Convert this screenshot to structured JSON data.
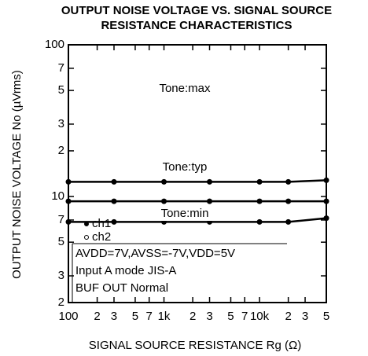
{
  "chart_data": {
    "type": "line",
    "title": "OUTPUT NOISE VOLTAGE VS. SIGNAL SOURCE",
    "subtitle": "RESISTANCE CHARACTERISTICS",
    "x_label": "SIGNAL SOURCE RESISTANCE Rg (Ω)",
    "y_label": "OUTPUT NOISE VOLTAGE No (µVrms)",
    "x": [
      100,
      300,
      1000,
      3000,
      10000,
      20000,
      50000
    ],
    "series": [
      {
        "name": "Tone:max",
        "color": "#000000",
        "values": [
          6.8,
          6.8,
          6.8,
          6.8,
          6.8,
          6.8,
          7.2
        ]
      },
      {
        "name": "Tone:typ",
        "color": "#000000",
        "values": [
          12.5,
          12.5,
          12.5,
          12.5,
          12.5,
          12.5,
          12.8
        ]
      },
      {
        "name": "Tone:min",
        "color": "#000000",
        "values": [
          9.3,
          9.3,
          9.3,
          9.3,
          9.3,
          9.3,
          9.3
        ]
      }
    ],
    "legend": [
      "ch1",
      "ch2"
    ],
    "notes": [
      "AVDD=7V,AVSS=-7V,VDD=5V",
      "Input A mode  JIS-A",
      "BUF OUT  Normal"
    ],
    "xlog": true,
    "ylog": true,
    "xlim": [
      100,
      50000
    ],
    "ylim": [
      2,
      100
    ],
    "xticks": [
      100,
      {
        "value": 200,
        "label": "2"
      },
      {
        "value": 300,
        "label": "3"
      },
      {
        "value": 500,
        "label": "5"
      },
      {
        "value": 700,
        "label": "7"
      },
      {
        "value": 1000,
        "label": "1k"
      },
      {
        "value": 2000,
        "label": "2"
      },
      {
        "value": 3000,
        "label": "3"
      },
      {
        "value": 5000,
        "label": "5"
      },
      {
        "value": 7000,
        "label": "7"
      },
      {
        "value": 10000,
        "label": "10k"
      },
      {
        "value": 20000,
        "label": "2"
      },
      {
        "value": 30000,
        "label": "3"
      },
      {
        "value": 50000,
        "label": "5"
      }
    ],
    "yticks": [
      2,
      3,
      5,
      7,
      10,
      {
        "value": 20,
        "label": "2"
      },
      {
        "value": 30,
        "label": "3"
      },
      {
        "value": 50,
        "label": "5"
      },
      {
        "value": 70,
        "label": "7"
      },
      100
    ]
  }
}
